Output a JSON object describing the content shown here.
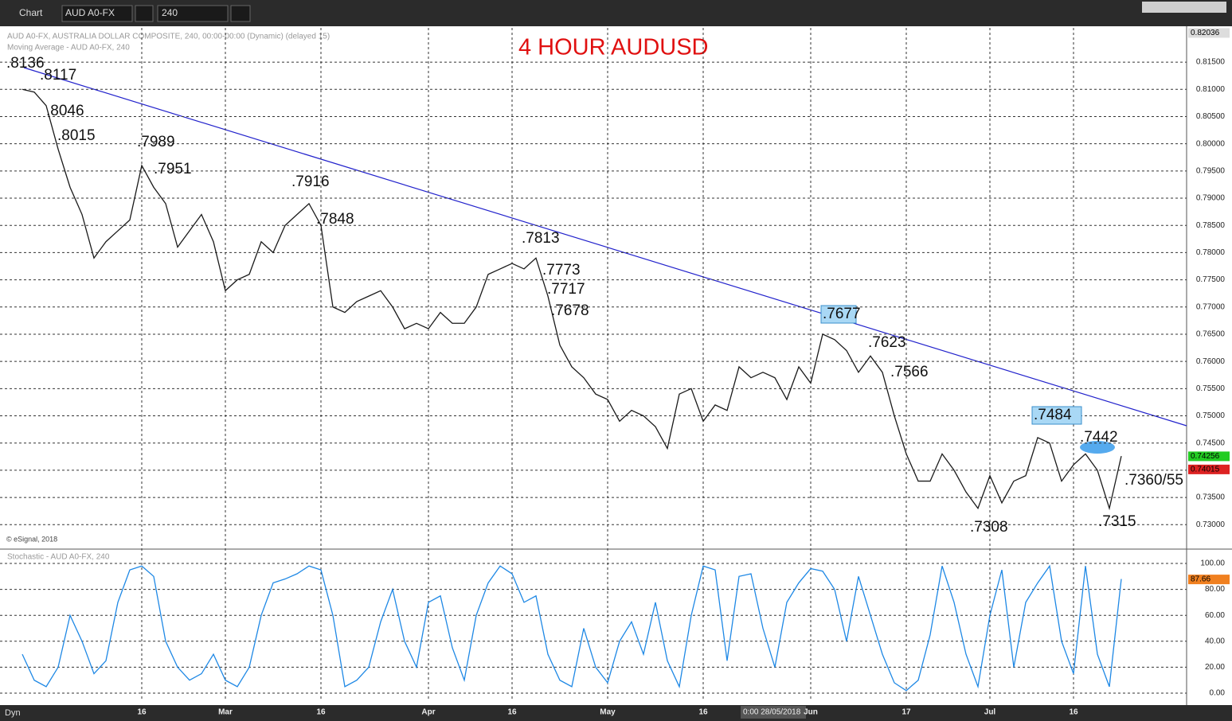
{
  "toolbar": {
    "title": "Chart",
    "symbol": "AUD A0-FX",
    "interval": "240"
  },
  "watermark": "© eSignal, 2018",
  "status_bar": {
    "mode": "Dyn",
    "cursor_time": "0:00 28/05/2018"
  },
  "chart_data": [
    {
      "type": "line",
      "title": "4 HOUR AUDUSD",
      "subtitle": "AUD A0-FX, AUSTRALIA DOLLAR COMPOSITE, 240, 00:00-00:00 (Dynamic) (delayed 15)",
      "study_label": "Moving Average - AUD A0-FX, 240",
      "color": "#1a1a1a",
      "values": [
        0.81,
        0.8095,
        0.807,
        0.799,
        0.792,
        0.787,
        0.779,
        0.782,
        0.784,
        0.786,
        0.796,
        0.792,
        0.789,
        0.781,
        0.784,
        0.787,
        0.782,
        0.773,
        0.775,
        0.776,
        0.782,
        0.78,
        0.785,
        0.787,
        0.789,
        0.785,
        0.77,
        0.769,
        0.771,
        0.772,
        0.773,
        0.77,
        0.766,
        0.767,
        0.766,
        0.769,
        0.767,
        0.767,
        0.77,
        0.776,
        0.777,
        0.778,
        0.777,
        0.779,
        0.772,
        0.763,
        0.759,
        0.757,
        0.754,
        0.753,
        0.749,
        0.751,
        0.75,
        0.748,
        0.744,
        0.754,
        0.755,
        0.749,
        0.752,
        0.751,
        0.759,
        0.757,
        0.758,
        0.757,
        0.753,
        0.759,
        0.756,
        0.765,
        0.764,
        0.762,
        0.758,
        0.761,
        0.758,
        0.75,
        0.743,
        0.738,
        0.738,
        0.743,
        0.74,
        0.736,
        0.733,
        0.739,
        0.734,
        0.738,
        0.739,
        0.746,
        0.745,
        0.738,
        0.741,
        0.743,
        0.74,
        0.733,
        0.7426
      ],
      "ylim": [
        0.7258,
        0.8213
      ],
      "yticks": [
        {
          "value": 0.73,
          "label": "0.73000"
        },
        {
          "value": 0.735,
          "label": "0.73500"
        },
        {
          "value": 0.74,
          "label": "0.74000"
        },
        {
          "value": 0.745,
          "label": "0.74500"
        },
        {
          "value": 0.75,
          "label": "0.75000"
        },
        {
          "value": 0.755,
          "label": "0.75500"
        },
        {
          "value": 0.76,
          "label": "0.76000"
        },
        {
          "value": 0.765,
          "label": "0.76500"
        },
        {
          "value": 0.77,
          "label": "0.77000"
        },
        {
          "value": 0.775,
          "label": "0.77500"
        },
        {
          "value": 0.78,
          "label": "0.78000"
        },
        {
          "value": 0.785,
          "label": "0.78500"
        },
        {
          "value": 0.79,
          "label": "0.79000"
        },
        {
          "value": 0.795,
          "label": "0.79500"
        },
        {
          "value": 0.8,
          "label": "0.80000"
        },
        {
          "value": 0.805,
          "label": "0.80500"
        },
        {
          "value": 0.81,
          "label": "0.81000"
        },
        {
          "value": 0.815,
          "label": "0.81500"
        }
      ],
      "price_tags": [
        {
          "value": 0.82036,
          "color": "#dddddd"
        },
        {
          "value": 0.74256,
          "color": "#22cc22"
        },
        {
          "value": 0.74015,
          "color": "#dd2222"
        }
      ],
      "annotations": [
        ".8136",
        ".8117",
        ".8046",
        ".8015",
        ".7989",
        ".7951",
        ".7916",
        ".7848",
        ".7813",
        ".7773",
        ".7717",
        ".7678",
        ".7677",
        ".7623",
        ".7566",
        ".7484",
        ".7442",
        ".7360/55",
        ".7308",
        ".7315"
      ],
      "grid": true
    },
    {
      "type": "line",
      "title": "Stochastic - AUD A0-FX, 240",
      "color": "#1e88e5",
      "categories": [
        null,
        null,
        null,
        null,
        null,
        null,
        null,
        null,
        null,
        null,
        "16",
        null,
        null,
        null,
        null,
        null,
        null,
        "Mar",
        null,
        null,
        null,
        null,
        null,
        null,
        null,
        "16",
        null,
        null,
        null,
        null,
        null,
        null,
        null,
        null,
        "Apr",
        null,
        null,
        null,
        null,
        null,
        null,
        "16",
        null,
        null,
        null,
        null,
        null,
        null,
        null,
        "May",
        null,
        null,
        null,
        null,
        null,
        null,
        null,
        "16",
        null,
        null,
        null,
        null,
        null,
        null,
        null,
        null,
        "Jun",
        null,
        null,
        null,
        null,
        null,
        null,
        null,
        "17",
        null,
        null,
        null,
        null,
        null,
        null,
        "Jul",
        null,
        null,
        null,
        null,
        null,
        null,
        "16",
        null,
        null,
        null,
        null
      ],
      "values": [
        30,
        10,
        5,
        20,
        60,
        40,
        15,
        25,
        70,
        95,
        98,
        90,
        40,
        20,
        10,
        15,
        30,
        10,
        5,
        20,
        60,
        85,
        88,
        92,
        98,
        95,
        60,
        5,
        10,
        20,
        55,
        80,
        40,
        20,
        70,
        75,
        35,
        10,
        60,
        85,
        98,
        92,
        70,
        75,
        30,
        10,
        5,
        50,
        20,
        8,
        40,
        55,
        30,
        70,
        25,
        5,
        60,
        98,
        95,
        25,
        90,
        92,
        50,
        20,
        70,
        85,
        96,
        94,
        80,
        40,
        90,
        60,
        30,
        8,
        2,
        10,
        45,
        98,
        70,
        30,
        5,
        60,
        95,
        20,
        70,
        85,
        98,
        40,
        15,
        98,
        30,
        5,
        88
      ],
      "ylim": [
        -5.5,
        109.8
      ],
      "yticks": [
        {
          "value": 0,
          "label": "0.00"
        },
        {
          "value": 20,
          "label": "20.00"
        },
        {
          "value": 40,
          "label": "40.00"
        },
        {
          "value": 60,
          "label": "60.00"
        },
        {
          "value": 80,
          "label": "80.00"
        },
        {
          "value": 100,
          "label": "100.00"
        }
      ],
      "price_tags": [
        {
          "value": 87.66,
          "color": "#f08020"
        }
      ],
      "grid": true
    }
  ]
}
